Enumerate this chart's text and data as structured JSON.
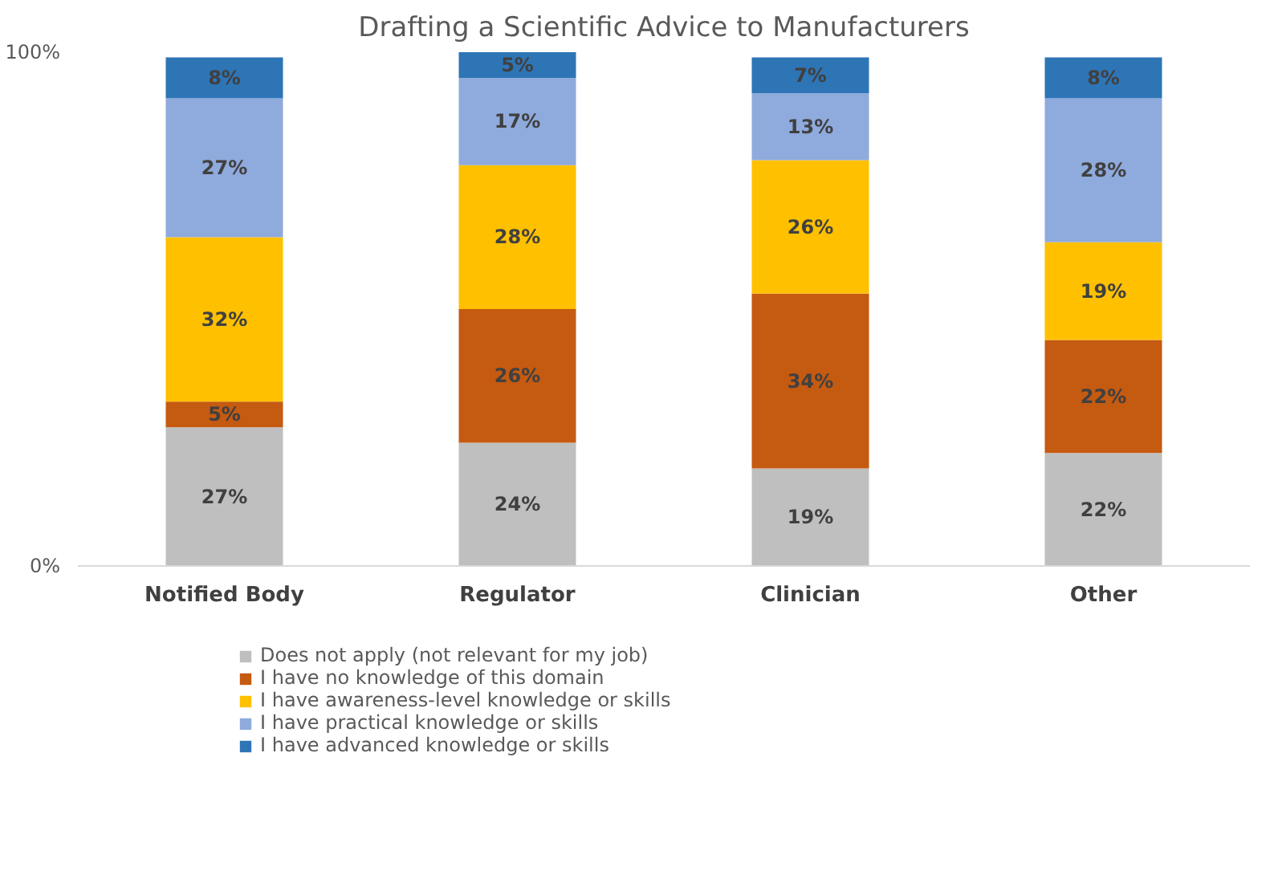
{
  "chart_data": {
    "type": "bar",
    "title": "Drafting a Scientific Advice to Manufacturers",
    "categories": [
      "Notified Body",
      "Regulator",
      "Clinician",
      "Other"
    ],
    "stacked": true,
    "series": [
      {
        "name": "Does not apply (not relevant for my job)",
        "color": "#bfbfbf",
        "values": [
          27,
          24,
          19,
          22
        ],
        "value_labels": [
          "27%",
          "24%",
          "19%",
          "22%"
        ]
      },
      {
        "name": "I have no knowledge of this domain",
        "color": "#c55a11",
        "values": [
          5,
          26,
          34,
          22
        ],
        "value_labels": [
          "5%",
          "26%",
          "34%",
          "22%"
        ]
      },
      {
        "name": "I have awareness-level knowledge or skills",
        "color": "#ffc000",
        "values": [
          32,
          28,
          26,
          19
        ],
        "value_labels": [
          "32%",
          "28%",
          "26%",
          "19%"
        ]
      },
      {
        "name": "I have practical knowledge or skills",
        "color": "#8faadc",
        "values": [
          27,
          17,
          13,
          28
        ],
        "value_labels": [
          "27%",
          "17%",
          "13%",
          "28%"
        ]
      },
      {
        "name": "I have advanced knowledge or skills",
        "color": "#2e75b6",
        "values": [
          8,
          5,
          7,
          8
        ],
        "value_labels": [
          "8%",
          "5%",
          "7%",
          "8%"
        ]
      }
    ],
    "ylim": [
      0,
      100
    ],
    "yticks": [
      {
        "value": 0,
        "label": "0%"
      },
      {
        "value": 100,
        "label": "100%"
      }
    ],
    "legend": "bottom"
  }
}
